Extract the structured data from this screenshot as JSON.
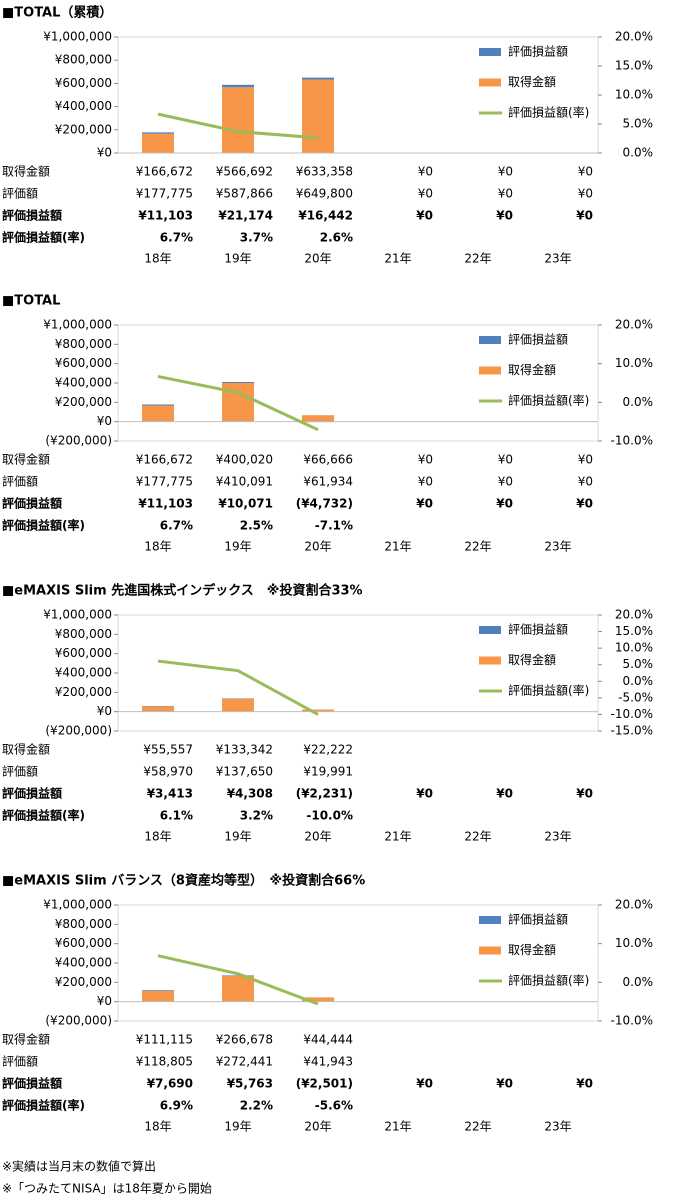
{
  "chart_data": [
    {
      "type": "bar",
      "title": "■TOTAL（累積）",
      "categories": [
        "18年",
        "19年",
        "20年",
        "21年",
        "22年",
        "23年"
      ],
      "series": [
        {
          "name": "評価損益額",
          "color": "#4f81bd",
          "values": [
            11103,
            21174,
            16442,
            0,
            0,
            0
          ],
          "value_labels": [
            "¥11,103",
            "¥21,174",
            "¥16,442",
            "¥0",
            "¥0",
            "¥0"
          ]
        },
        {
          "name": "取得金額",
          "color": "#f79646",
          "values": [
            166672,
            566692,
            633358,
            0,
            0,
            0
          ],
          "value_labels": [
            "¥166,672",
            "¥566,692",
            "¥633,358",
            "¥0",
            "¥0",
            "¥0"
          ]
        },
        {
          "name": "評価損益額(率)",
          "color": "#9bbb59",
          "axis": "y2",
          "values": [
            6.7,
            3.7,
            2.6,
            null,
            null,
            null
          ],
          "value_labels": [
            "6.7%",
            "3.7%",
            "2.6%",
            null,
            null,
            null
          ]
        }
      ],
      "rows": [
        {
          "label": "評価額",
          "values": [
            "¥177,775",
            "¥587,866",
            "¥649,800",
            "¥0",
            "¥0",
            "¥0"
          ]
        }
      ],
      "ylim": [
        0,
        1000000
      ],
      "yticks": [
        {
          "value": 0,
          "label": "¥0"
        },
        {
          "value": 200000,
          "label": "¥200,000"
        },
        {
          "value": 400000,
          "label": "¥400,000"
        },
        {
          "value": 600000,
          "label": "¥600,000"
        },
        {
          "value": 800000,
          "label": "¥800,000"
        },
        {
          "value": 1000000,
          "label": "¥1,000,000"
        }
      ],
      "y2lim": [
        0,
        20
      ],
      "y2ticks": [
        {
          "value": 0,
          "label": "0.0%"
        },
        {
          "value": 5,
          "label": "5.0%"
        },
        {
          "value": 10,
          "label": "10.0%"
        },
        {
          "value": 15,
          "label": "15.0%"
        },
        {
          "value": 20,
          "label": "20.0%"
        }
      ],
      "legend": "top-right",
      "grid": false
    },
    {
      "type": "bar",
      "title": "■TOTAL",
      "categories": [
        "18年",
        "19年",
        "20年",
        "21年",
        "22年",
        "23年"
      ],
      "series": [
        {
          "name": "評価損益額",
          "color": "#4f81bd",
          "values": [
            11103,
            10071,
            -4732,
            0,
            0,
            0
          ],
          "value_labels": [
            "¥11,103",
            "¥10,071",
            "(¥4,732)",
            "¥0",
            "¥0",
            "¥0"
          ]
        },
        {
          "name": "取得金額",
          "color": "#f79646",
          "values": [
            166672,
            400020,
            66666,
            0,
            0,
            0
          ],
          "value_labels": [
            "¥166,672",
            "¥400,020",
            "¥66,666",
            "¥0",
            "¥0",
            "¥0"
          ]
        },
        {
          "name": "評価損益額(率)",
          "color": "#9bbb59",
          "axis": "y2",
          "values": [
            6.7,
            2.5,
            -7.1,
            null,
            null,
            null
          ],
          "value_labels": [
            "6.7%",
            "2.5%",
            "-7.1%",
            null,
            null,
            null
          ]
        }
      ],
      "rows": [
        {
          "label": "評価額",
          "values": [
            "¥177,775",
            "¥410,091",
            "¥61,934",
            "¥0",
            "¥0",
            "¥0"
          ]
        }
      ],
      "ylim": [
        -200000,
        1000000
      ],
      "yticks": [
        {
          "value": -200000,
          "label": "(¥200,000)"
        },
        {
          "value": 0,
          "label": "¥0"
        },
        {
          "value": 200000,
          "label": "¥200,000"
        },
        {
          "value": 400000,
          "label": "¥400,000"
        },
        {
          "value": 600000,
          "label": "¥600,000"
        },
        {
          "value": 800000,
          "label": "¥800,000"
        },
        {
          "value": 1000000,
          "label": "¥1,000,000"
        }
      ],
      "y2lim": [
        -10,
        20
      ],
      "y2ticks": [
        {
          "value": -10,
          "label": "-10.0%"
        },
        {
          "value": 0,
          "label": "0.0%"
        },
        {
          "value": 10,
          "label": "10.0%"
        },
        {
          "value": 20,
          "label": "20.0%"
        }
      ],
      "legend": "top-right",
      "grid": false
    },
    {
      "type": "bar",
      "title": "■eMAXIS Slim 先進国株式インデックス　※投資割合33%",
      "categories": [
        "18年",
        "19年",
        "20年",
        "21年",
        "22年",
        "23年"
      ],
      "series": [
        {
          "name": "評価損益額",
          "color": "#4f81bd",
          "values": [
            3413,
            4308,
            -2231,
            0,
            0,
            0
          ],
          "value_labels": [
            "¥3,413",
            "¥4,308",
            "(¥2,231)",
            "¥0",
            "¥0",
            "¥0"
          ]
        },
        {
          "name": "取得金額",
          "color": "#f79646",
          "values": [
            55557,
            133342,
            22222,
            null,
            null,
            null
          ],
          "value_labels": [
            "¥55,557",
            "¥133,342",
            "¥22,222",
            null,
            null,
            null
          ]
        },
        {
          "name": "評価損益額(率)",
          "color": "#9bbb59",
          "axis": "y2",
          "values": [
            6.1,
            3.2,
            -10.0,
            null,
            null,
            null
          ],
          "value_labels": [
            "6.1%",
            "3.2%",
            "-10.0%",
            null,
            null,
            null
          ]
        }
      ],
      "rows": [
        {
          "label": "評価額",
          "values": [
            "¥58,970",
            "¥137,650",
            "¥19,991",
            null,
            null,
            null
          ]
        }
      ],
      "ylim": [
        -200000,
        1000000
      ],
      "yticks": [
        {
          "value": -200000,
          "label": "(¥200,000)"
        },
        {
          "value": 0,
          "label": "¥0"
        },
        {
          "value": 200000,
          "label": "¥200,000"
        },
        {
          "value": 400000,
          "label": "¥400,000"
        },
        {
          "value": 600000,
          "label": "¥600,000"
        },
        {
          "value": 800000,
          "label": "¥800,000"
        },
        {
          "value": 1000000,
          "label": "¥1,000,000"
        }
      ],
      "y2lim": [
        -15,
        20
      ],
      "y2ticks": [
        {
          "value": -15,
          "label": "-15.0%"
        },
        {
          "value": -10,
          "label": "-10.0%"
        },
        {
          "value": -5,
          "label": "-5.0%"
        },
        {
          "value": 0,
          "label": "0.0%"
        },
        {
          "value": 5,
          "label": "5.0%"
        },
        {
          "value": 10,
          "label": "10.0%"
        },
        {
          "value": 15,
          "label": "15.0%"
        },
        {
          "value": 20,
          "label": "20.0%"
        }
      ],
      "legend": "top-right",
      "grid": false
    },
    {
      "type": "bar",
      "title": "■eMAXIS Slim バランス（8資産均等型）　※投資割合66%",
      "categories": [
        "18年",
        "19年",
        "20年",
        "21年",
        "22年",
        "23年"
      ],
      "series": [
        {
          "name": "評価損益額",
          "color": "#4f81bd",
          "values": [
            7690,
            5763,
            -2501,
            0,
            0,
            0
          ],
          "value_labels": [
            "¥7,690",
            "¥5,763",
            "(¥2,501)",
            "¥0",
            "¥0",
            "¥0"
          ]
        },
        {
          "name": "取得金額",
          "color": "#f79646",
          "values": [
            111115,
            266678,
            44444,
            null,
            null,
            null
          ],
          "value_labels": [
            "¥111,115",
            "¥266,678",
            "¥44,444",
            null,
            null,
            null
          ]
        },
        {
          "name": "評価損益額(率)",
          "color": "#9bbb59",
          "axis": "y2",
          "values": [
            6.9,
            2.2,
            -5.6,
            null,
            null,
            null
          ],
          "value_labels": [
            "6.9%",
            "2.2%",
            "-5.6%",
            null,
            null,
            null
          ]
        }
      ],
      "rows": [
        {
          "label": "評価額",
          "values": [
            "¥118,805",
            "¥272,441",
            "¥41,943",
            null,
            null,
            null
          ]
        }
      ],
      "ylim": [
        -200000,
        1000000
      ],
      "yticks": [
        {
          "value": -200000,
          "label": "(¥200,000)"
        },
        {
          "value": 0,
          "label": "¥0"
        },
        {
          "value": 200000,
          "label": "¥200,000"
        },
        {
          "value": 400000,
          "label": "¥400,000"
        },
        {
          "value": 600000,
          "label": "¥600,000"
        },
        {
          "value": 800000,
          "label": "¥800,000"
        },
        {
          "value": 1000000,
          "label": "¥1,000,000"
        }
      ],
      "y2lim": [
        -10,
        20
      ],
      "y2ticks": [
        {
          "value": -10,
          "label": "-10.0%"
        },
        {
          "value": 0,
          "label": "0.0%"
        },
        {
          "value": 10,
          "label": "10.0%"
        },
        {
          "value": 20,
          "label": "20.0%"
        }
      ],
      "legend": "top-right",
      "grid": false
    }
  ],
  "notes": [
    "※実績は当月末の数値で算出",
    "※「つみたてNISA」は18年夏から開始"
  ]
}
